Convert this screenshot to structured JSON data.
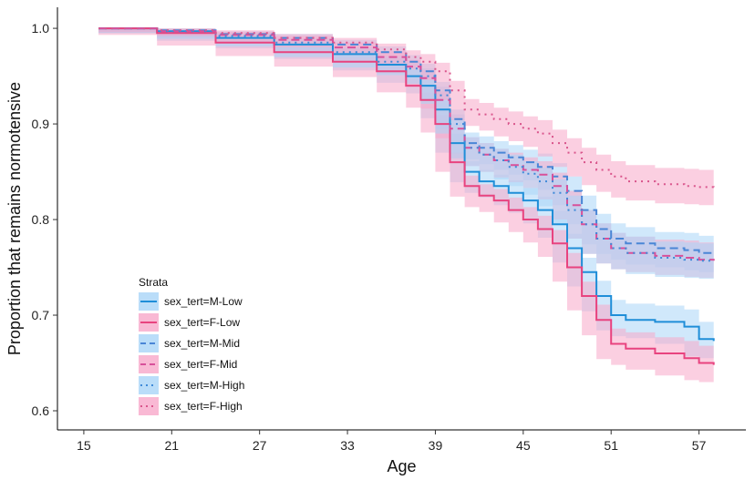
{
  "chart_data": {
    "type": "line",
    "xlabel": "Age",
    "ylabel": "Proportion that remains normotensive",
    "xlim": [
      13.2,
      60.2
    ],
    "ylim": [
      0.58,
      1.022
    ],
    "x_ticks": [
      "15",
      "21",
      "27",
      "33",
      "39",
      "45",
      "51",
      "57"
    ],
    "x_tick_values": [
      15,
      21,
      27,
      33,
      39,
      45,
      51,
      57
    ],
    "y_ticks": [
      "0.6",
      "0.7",
      "0.8",
      "0.9",
      "1.0"
    ],
    "y_tick_values": [
      0.6,
      0.7,
      0.8,
      0.9,
      1.0
    ],
    "grid": false,
    "legend": {
      "title": "Strata",
      "position": "bottom-left"
    },
    "series": [
      {
        "name": "sex_tert=M-Low",
        "color": "#1f8ed8",
        "band_color": "#a9d5f7",
        "dash": "solid",
        "x": [
          16,
          20,
          24,
          28,
          32,
          35,
          37,
          38,
          39,
          40,
          41,
          42,
          43,
          44,
          45,
          46,
          47,
          48,
          49,
          50,
          51,
          52,
          54,
          56,
          57,
          58
        ],
        "y": [
          1.0,
          0.997,
          0.99,
          0.983,
          0.973,
          0.962,
          0.95,
          0.94,
          0.915,
          0.88,
          0.85,
          0.84,
          0.835,
          0.828,
          0.82,
          0.81,
          0.795,
          0.77,
          0.745,
          0.72,
          0.7,
          0.695,
          0.693,
          0.688,
          0.675,
          0.673
        ],
        "band_width": [
          0.001,
          0.002,
          0.003,
          0.004,
          0.005,
          0.006,
          0.007,
          0.008,
          0.009,
          0.01,
          0.011,
          0.012,
          0.012,
          0.013,
          0.013,
          0.014,
          0.014,
          0.015,
          0.015,
          0.016,
          0.016,
          0.017,
          0.017,
          0.018,
          0.018,
          0.018
        ]
      },
      {
        "name": "sex_tert=F-Low",
        "color": "#e8437f",
        "band_color": "#f7a8c9",
        "dash": "solid",
        "x": [
          16,
          20,
          24,
          28,
          32,
          35,
          37,
          38,
          39,
          40,
          41,
          42,
          43,
          44,
          45,
          46,
          47,
          48,
          49,
          50,
          51,
          52,
          54,
          56,
          57,
          58
        ],
        "y": [
          1.0,
          0.995,
          0.985,
          0.975,
          0.965,
          0.955,
          0.94,
          0.925,
          0.9,
          0.86,
          0.835,
          0.825,
          0.82,
          0.81,
          0.8,
          0.79,
          0.775,
          0.75,
          0.72,
          0.695,
          0.67,
          0.665,
          0.66,
          0.655,
          0.65,
          0.648
        ],
        "band_width": [
          0.001,
          0.002,
          0.003,
          0.004,
          0.005,
          0.006,
          0.007,
          0.008,
          0.009,
          0.01,
          0.011,
          0.012,
          0.012,
          0.013,
          0.013,
          0.014,
          0.014,
          0.015,
          0.015,
          0.016,
          0.016,
          0.017,
          0.017,
          0.018,
          0.018,
          0.018
        ]
      },
      {
        "name": "sex_tert=M-Mid",
        "color": "#4a86d6",
        "band_color": "#a9d5f7",
        "dash": "dashed",
        "x": [
          16,
          20,
          24,
          28,
          32,
          35,
          37,
          38,
          39,
          40,
          41,
          42,
          43,
          44,
          45,
          46,
          47,
          48,
          49,
          50,
          51,
          52,
          54,
          56,
          57,
          58
        ],
        "y": [
          1.0,
          0.998,
          0.994,
          0.99,
          0.983,
          0.975,
          0.965,
          0.955,
          0.935,
          0.905,
          0.88,
          0.875,
          0.87,
          0.865,
          0.86,
          0.855,
          0.845,
          0.83,
          0.81,
          0.79,
          0.78,
          0.775,
          0.77,
          0.768,
          0.765,
          0.763
        ],
        "band_width": [
          0.001,
          0.002,
          0.003,
          0.004,
          0.005,
          0.006,
          0.007,
          0.008,
          0.009,
          0.01,
          0.011,
          0.012,
          0.012,
          0.013,
          0.013,
          0.014,
          0.014,
          0.015,
          0.015,
          0.016,
          0.016,
          0.017,
          0.017,
          0.018,
          0.018,
          0.018
        ]
      },
      {
        "name": "sex_tert=F-Mid",
        "color": "#d8509a",
        "band_color": "#f7a8c9",
        "dash": "dashed",
        "x": [
          16,
          20,
          24,
          28,
          32,
          35,
          37,
          38,
          39,
          40,
          41,
          42,
          43,
          44,
          45,
          46,
          47,
          48,
          49,
          50,
          51,
          52,
          54,
          56,
          57,
          58
        ],
        "y": [
          1.0,
          0.997,
          0.993,
          0.988,
          0.98,
          0.97,
          0.96,
          0.948,
          0.925,
          0.895,
          0.875,
          0.868,
          0.862,
          0.857,
          0.852,
          0.847,
          0.835,
          0.815,
          0.795,
          0.78,
          0.77,
          0.765,
          0.762,
          0.76,
          0.758,
          0.757
        ],
        "band_width": [
          0.001,
          0.002,
          0.003,
          0.004,
          0.005,
          0.006,
          0.007,
          0.008,
          0.009,
          0.01,
          0.011,
          0.012,
          0.012,
          0.013,
          0.013,
          0.014,
          0.014,
          0.015,
          0.015,
          0.016,
          0.016,
          0.017,
          0.017,
          0.018,
          0.018,
          0.018
        ]
      },
      {
        "name": "sex_tert=M-High",
        "color": "#3f8ad8",
        "band_color": "#a9d5f7",
        "dash": "dotted",
        "x": [
          16,
          20,
          24,
          28,
          32,
          35,
          37,
          38,
          39,
          40,
          41,
          42,
          43,
          44,
          45,
          46,
          47,
          48,
          49,
          50,
          51,
          52,
          54,
          56,
          57,
          58
        ],
        "y": [
          1.0,
          0.997,
          0.992,
          0.985,
          0.975,
          0.965,
          0.958,
          0.95,
          0.93,
          0.9,
          0.875,
          0.868,
          0.862,
          0.855,
          0.848,
          0.84,
          0.828,
          0.81,
          0.795,
          0.78,
          0.77,
          0.765,
          0.76,
          0.758,
          0.757,
          0.756
        ],
        "band_width": [
          0.001,
          0.002,
          0.003,
          0.004,
          0.005,
          0.006,
          0.007,
          0.008,
          0.009,
          0.01,
          0.011,
          0.012,
          0.012,
          0.013,
          0.013,
          0.014,
          0.014,
          0.015,
          0.015,
          0.016,
          0.016,
          0.017,
          0.017,
          0.018,
          0.018,
          0.018
        ]
      },
      {
        "name": "sex_tert=F-High",
        "color": "#d9558c",
        "band_color": "#f7a8c9",
        "dash": "dotted",
        "x": [
          16,
          20,
          24,
          28,
          32,
          35,
          37,
          38,
          39,
          40,
          41,
          42,
          43,
          44,
          45,
          46,
          47,
          48,
          49,
          50,
          51,
          52,
          54,
          56,
          57,
          58
        ],
        "y": [
          1.0,
          0.998,
          0.995,
          0.99,
          0.985,
          0.978,
          0.97,
          0.965,
          0.955,
          0.935,
          0.915,
          0.91,
          0.905,
          0.9,
          0.895,
          0.89,
          0.88,
          0.87,
          0.86,
          0.852,
          0.845,
          0.84,
          0.837,
          0.835,
          0.834,
          0.833
        ],
        "band_width": [
          0.001,
          0.002,
          0.003,
          0.004,
          0.005,
          0.006,
          0.007,
          0.008,
          0.009,
          0.01,
          0.011,
          0.012,
          0.012,
          0.013,
          0.013,
          0.014,
          0.014,
          0.015,
          0.015,
          0.016,
          0.016,
          0.017,
          0.017,
          0.018,
          0.018,
          0.018
        ]
      }
    ]
  }
}
